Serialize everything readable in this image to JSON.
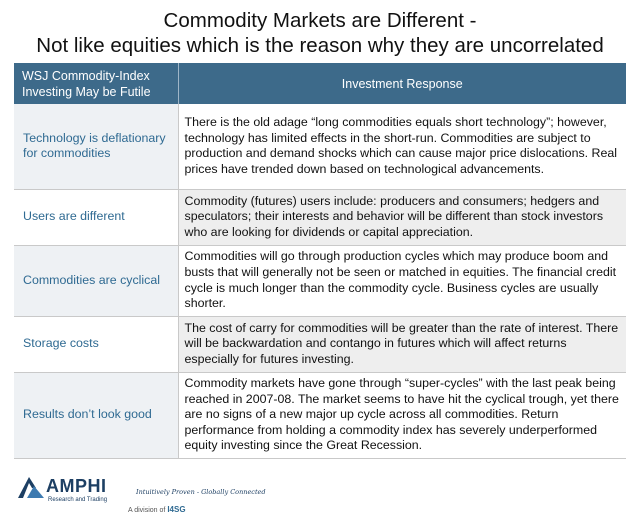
{
  "title": {
    "line1": "Commodity Markets are Different -",
    "line2": "Not like equities which is the reason why they are uncorrelated"
  },
  "table": {
    "headers": {
      "col1": "WSJ Commodity-Index Investing May be Futile",
      "col2": "Investment Response"
    },
    "rows": [
      {
        "label": "Technology is deflationary for commodities",
        "text": "There is the old adage “long commodities equals short technology”; however, technology has limited effects in the short-run. Commodities are subject to production and demand shocks which can cause major price dislocations. Real prices have trended down based on technological advancements."
      },
      {
        "label": "Users are different",
        "text": "Commodity (futures) users include: producers and consumers; hedgers and speculators; their interests and behavior will be different than stock investors who are looking for dividends or capital appreciation."
      },
      {
        "label": "Commodities are cyclical",
        "text": "Commodities will go through production cycles which may produce boom and busts that will generally not be seen or matched in equities. The financial credit cycle is much longer than the commodity cycle. Business cycles are usually shorter."
      },
      {
        "label": "Storage costs",
        "text": "The cost of carry for commodities will be greater than the rate of interest. There will be backwardation and contango in futures which will affect returns especially for futures investing."
      },
      {
        "label": "Results don’t look good",
        "text": "Commodity markets have gone through “super-cycles” with the last peak being reached in 2007-08. The market seems to have hit the cyclical trough, yet there are no signs of a new major up cycle across all commodities. Return performance from holding a commodity index has severely underperformed equity investing since the Great Recession."
      }
    ]
  },
  "footer": {
    "logo_name": "AMPHI",
    "logo_sub": "Research and Trading",
    "tagline": "Intuitively Proven - Globally Connected",
    "division_prefix": "A division of",
    "division_name": "I4SG",
    "logo_icon": "mountain-logo-icon",
    "brand_color": "#1d3f63",
    "header_color": "#3d6a8a",
    "label_color": "#2f6a92"
  }
}
